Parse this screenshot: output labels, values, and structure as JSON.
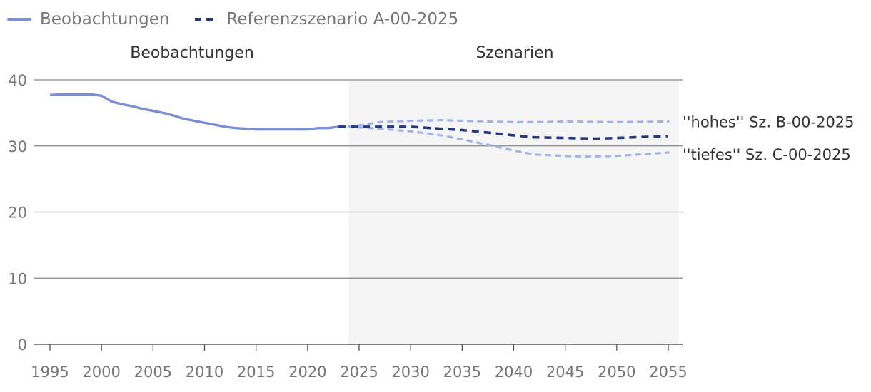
{
  "legend": {
    "observed_label": "Beobachtungen",
    "reference_label": "Referenzszenario A-00-2025"
  },
  "sections": {
    "observed": "Beobachtungen",
    "scenarios": "Szenarien"
  },
  "colors": {
    "observed": "#7b8fd4",
    "reference": "#253a7c",
    "alternative": "#a3b3e6",
    "shade": "#f5f5f5",
    "grid": "#888888",
    "axis_text": "#767676"
  },
  "chart_data": {
    "type": "line",
    "xlabel": "",
    "ylabel": "",
    "xlim": [
      1995,
      2055
    ],
    "ylim": [
      0,
      40
    ],
    "xticks": [
      1995,
      2000,
      2005,
      2010,
      2015,
      2020,
      2025,
      2030,
      2035,
      2040,
      2045,
      2050,
      2055
    ],
    "yticks": [
      0,
      10,
      20,
      30,
      40
    ],
    "shaded_region": {
      "from": 2024,
      "to": 2056,
      "label": "Szenarien"
    },
    "legend_position": "top-left",
    "series": [
      {
        "name": "Beobachtungen",
        "style": "solid",
        "x": [
          1995,
          1996,
          1997,
          1998,
          1999,
          2000,
          2001,
          2002,
          2003,
          2004,
          2005,
          2006,
          2007,
          2008,
          2009,
          2010,
          2011,
          2012,
          2013,
          2014,
          2015,
          2016,
          2017,
          2018,
          2019,
          2020,
          2021,
          2022,
          2023
        ],
        "y": [
          37.7,
          37.8,
          37.8,
          37.8,
          37.8,
          37.6,
          36.7,
          36.3,
          36.0,
          35.6,
          35.3,
          35.0,
          34.6,
          34.1,
          33.8,
          33.5,
          33.2,
          32.9,
          32.7,
          32.6,
          32.5,
          32.5,
          32.5,
          32.5,
          32.5,
          32.5,
          32.7,
          32.7,
          32.9
        ]
      },
      {
        "name": "Referenzszenario A-00-2025",
        "style": "dashed",
        "x": [
          2023,
          2025,
          2030,
          2035,
          2037,
          2040,
          2042,
          2045,
          2048,
          2050,
          2055
        ],
        "y": [
          32.9,
          32.9,
          32.9,
          32.4,
          32.1,
          31.6,
          31.3,
          31.2,
          31.1,
          31.2,
          31.5
        ]
      },
      {
        "name": "\"hohes\" Sz. B-00-2025",
        "style": "dotted",
        "x": [
          2023,
          2025,
          2027,
          2030,
          2033,
          2035,
          2040,
          2042,
          2045,
          2050,
          2055
        ],
        "y": [
          32.9,
          33.1,
          33.6,
          33.8,
          33.9,
          33.8,
          33.6,
          33.6,
          33.7,
          33.6,
          33.7
        ]
      },
      {
        "name": "\"tiefes\" Sz. C-00-2025",
        "style": "dotted",
        "x": [
          2023,
          2025,
          2027,
          2030,
          2033,
          2035,
          2038,
          2040,
          2042,
          2045,
          2047,
          2050,
          2055
        ],
        "y": [
          32.9,
          32.8,
          32.6,
          32.2,
          31.6,
          31.0,
          30.0,
          29.3,
          28.7,
          28.5,
          28.4,
          28.5,
          29.0
        ]
      }
    ],
    "end_labels": [
      {
        "text": "''hohes'' Sz. B-00-2025",
        "series": 2
      },
      {
        "text": "''tiefes'' Sz. C-00-2025",
        "series": 3
      }
    ]
  }
}
